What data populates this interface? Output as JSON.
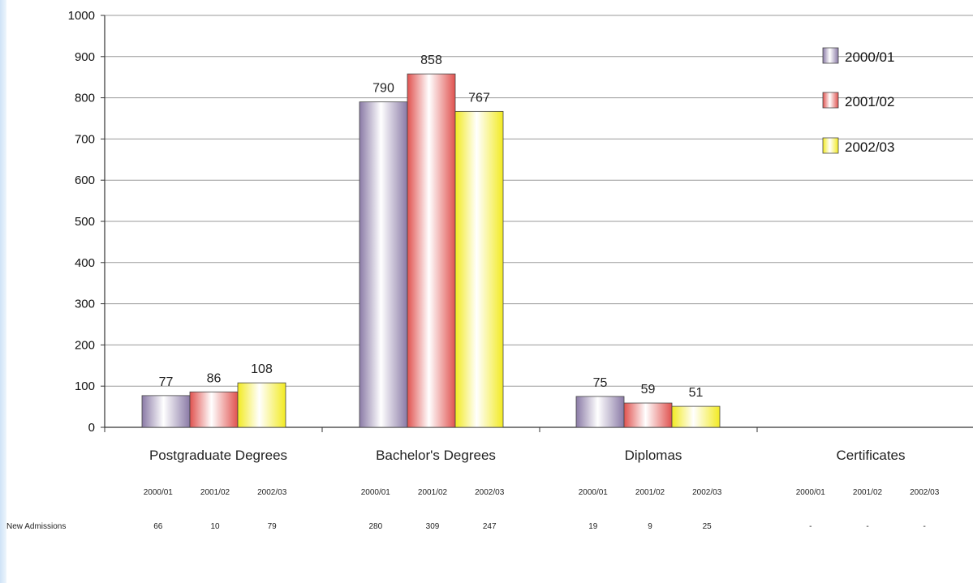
{
  "chart_data": {
    "type": "bar",
    "title": "",
    "xlabel": "",
    "ylabel": "",
    "ylim": [
      0,
      1000
    ],
    "yticks": [
      0,
      100,
      200,
      300,
      400,
      500,
      600,
      700,
      800,
      900,
      1000
    ],
    "grid": true,
    "legend_position": "top-right",
    "categories": [
      "Postgraduate Degrees",
      "Bachelor's Degrees",
      "Diplomas",
      "Certificates"
    ],
    "series": [
      {
        "name": "2000/01",
        "values": [
          77,
          790,
          75,
          null
        ],
        "labels": [
          "77",
          "790",
          "75",
          ""
        ],
        "color": "#8a7aa6"
      },
      {
        "name": "2001/02",
        "values": [
          86,
          858,
          59,
          null
        ],
        "labels": [
          "86",
          "858",
          "59",
          ""
        ],
        "color": "#e0524f"
      },
      {
        "name": "2002/03",
        "values": [
          108,
          767,
          51,
          null
        ],
        "labels": [
          "108",
          "767",
          "51",
          ""
        ],
        "color": "#f2ea22"
      }
    ]
  },
  "table": {
    "years": [
      "2000/01",
      "2001/02",
      "2002/03"
    ],
    "row_label": "New Admissions",
    "values": [
      [
        "66",
        "10",
        "79"
      ],
      [
        "280",
        "309",
        "247"
      ],
      [
        "19",
        "9",
        "25"
      ],
      [
        "-",
        "-",
        "-"
      ]
    ]
  }
}
